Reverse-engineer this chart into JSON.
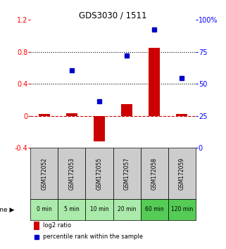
{
  "title": "GDS3030 / 1511",
  "samples": [
    "GSM172052",
    "GSM172053",
    "GSM172055",
    "GSM172057",
    "GSM172058",
    "GSM172059"
  ],
  "time_labels": [
    "0 min",
    "5 min",
    "10 min",
    "20 min",
    "60 min",
    "120 min"
  ],
  "log2_ratio": [
    0.02,
    0.03,
    -0.32,
    0.15,
    0.85,
    0.02
  ],
  "percentile_rank": [
    null,
    0.57,
    0.18,
    0.75,
    1.08,
    0.47
  ],
  "left_ylim": [
    -0.4,
    1.2
  ],
  "right_ylim": [
    0,
    100
  ],
  "left_yticks": [
    -0.4,
    0.0,
    0.4,
    0.8,
    1.2
  ],
  "right_yticks": [
    0,
    25,
    50,
    75,
    100
  ],
  "left_tick_labels": [
    "-0.4",
    "0",
    "0.4",
    "0.8",
    "1.2"
  ],
  "right_tick_labels": [
    "0",
    "25",
    "50",
    "75",
    "100%"
  ],
  "hlines_dotted": [
    0.4,
    0.8
  ],
  "zero_dashed_color": "#cc0000",
  "bar_color": "#cc0000",
  "dot_color": "#0000cc",
  "bg_color_sample": "#cccccc",
  "bg_color_time_light": "#aaeaaa",
  "bg_color_time_dark": "#55cc55",
  "legend_bar_label": "log2 ratio",
  "legend_dot_label": "percentile rank within the sample",
  "time_colors": [
    "#aaeaaa",
    "#aaeaaa",
    "#aaeaaa",
    "#aaeaaa",
    "#55cc55",
    "#55cc55"
  ]
}
